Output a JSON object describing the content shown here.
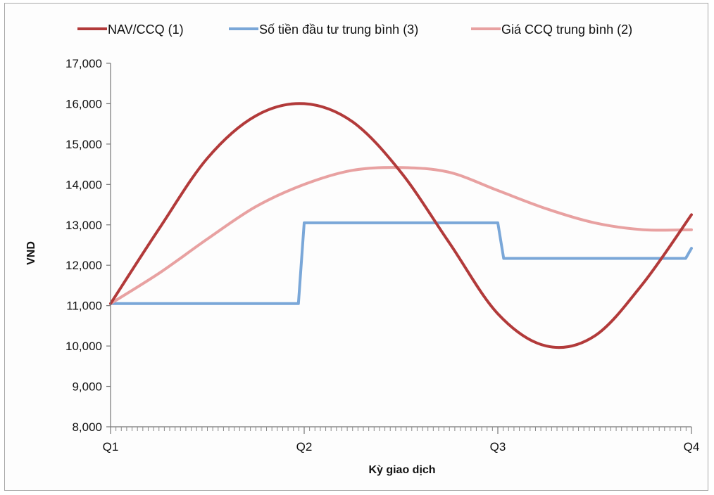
{
  "chart_data": {
    "type": "line",
    "title": "",
    "xlabel": "Kỳ giao dịch",
    "ylabel": "VND",
    "categories": [
      "Q1",
      "Q2",
      "Q3",
      "Q4"
    ],
    "x_range": [
      0,
      3
    ],
    "ylim": [
      8000,
      17000
    ],
    "y_ticks": [
      8000,
      9000,
      10000,
      11000,
      12000,
      13000,
      14000,
      15000,
      16000,
      17000
    ],
    "y_tick_labels": [
      "8,000",
      "9,000",
      "10,000",
      "11,000",
      "12,000",
      "13,000",
      "14,000",
      "15,000",
      "16,000",
      "17,000"
    ],
    "grid": false,
    "legend": "top",
    "series": [
      {
        "name": "NAV/CCQ (1)",
        "color": "#b23a3a",
        "x": [
          0,
          0.25,
          0.5,
          0.75,
          1.0,
          1.25,
          1.5,
          1.75,
          2.0,
          2.25,
          2.5,
          2.75,
          3.0
        ],
        "y": [
          11050,
          12900,
          14650,
          15700,
          16000,
          15550,
          14300,
          12550,
          10800,
          10000,
          10250,
          11550,
          13250
        ]
      },
      {
        "name": "Số tiền đầu tư trung bình (3)",
        "color": "#7aa7d8",
        "x": [
          0,
          0.97,
          1.0,
          2.0,
          2.03,
          2.97,
          3.0
        ],
        "y": [
          11050,
          11050,
          13050,
          13050,
          12170,
          12170,
          12420
        ]
      },
      {
        "name": "Giá CCQ trung bình (2)",
        "color": "#e8a1a1",
        "x": [
          0,
          0.25,
          0.5,
          0.75,
          1.0,
          1.25,
          1.5,
          1.75,
          2.0,
          2.25,
          2.5,
          2.75,
          3.0
        ],
        "y": [
          11050,
          11800,
          12650,
          13450,
          14000,
          14350,
          14420,
          14300,
          13850,
          13400,
          13050,
          12880,
          12880
        ]
      }
    ]
  }
}
